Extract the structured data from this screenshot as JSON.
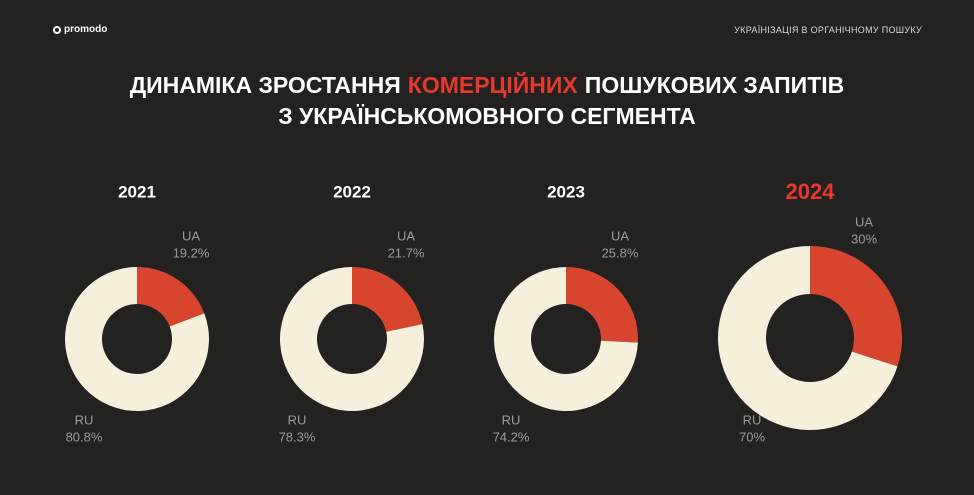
{
  "header": {
    "logo": "promodo",
    "section": "УКРАЇНІЗАЦІЯ В ОРГАНІЧНОМУ ПОШУКУ"
  },
  "title": {
    "line1": [
      "ДИНАМІКА ЗРОСТАННЯ",
      "КОМЕРЦІЙНИХ",
      "ПОШУКОВИХ ЗАПИТІВ"
    ],
    "line2": "З УКРАЇНСЬКОМОВНОГО СЕГМЕНТА"
  },
  "chart_data": [
    {
      "type": "donut",
      "title": "2021",
      "title_color": "#ffffff",
      "categories": [
        "UA",
        "RU"
      ],
      "values": [
        19.2,
        80.8
      ],
      "value_labels": [
        "19.2%",
        "80.8%"
      ],
      "colors": [
        "#d8452f",
        "#f6efdc"
      ]
    },
    {
      "type": "donut",
      "title": "2022",
      "title_color": "#ffffff",
      "categories": [
        "UA",
        "RU"
      ],
      "values": [
        21.7,
        78.3
      ],
      "value_labels": [
        "21.7%",
        "78.3%"
      ],
      "colors": [
        "#d8452f",
        "#f6efdc"
      ]
    },
    {
      "type": "donut",
      "title": "2023",
      "title_color": "#ffffff",
      "categories": [
        "UA",
        "RU"
      ],
      "values": [
        25.8,
        74.2
      ],
      "value_labels": [
        "25.8%",
        "74.2%"
      ],
      "colors": [
        "#d8452f",
        "#f6efdc"
      ]
    },
    {
      "type": "donut",
      "title": "2024",
      "title_color": "#e8382d",
      "categories": [
        "UA",
        "RU"
      ],
      "values": [
        30,
        70
      ],
      "value_labels": [
        "30%",
        "70%"
      ],
      "colors": [
        "#d8452f",
        "#f6efdc"
      ]
    }
  ]
}
